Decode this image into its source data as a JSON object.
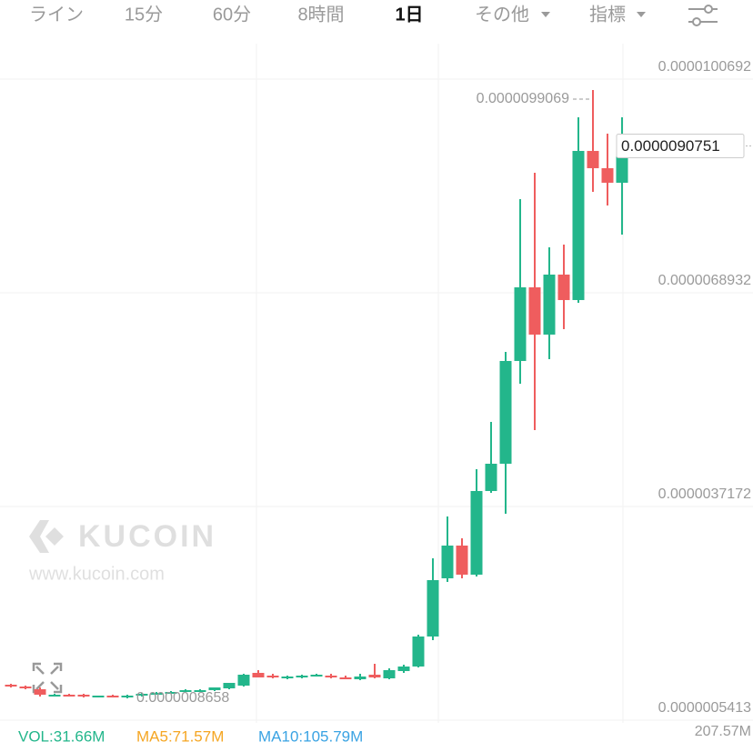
{
  "tabs": [
    "ライン",
    "15分",
    "60分",
    "8時間",
    "1日",
    "その他",
    "指標"
  ],
  "watermark": {
    "brand": "KUCOIN",
    "url": "www.kucoin.com"
  },
  "chart_data": {
    "type": "candlestick",
    "up_color": "#23b68b",
    "down_color": "#ef5d5e",
    "ylim": [
      4.33e-07,
      1.0569e-05
    ],
    "yticks": [
      {
        "value": 1.00692e-05,
        "label": "0.0000100692"
      },
      {
        "value": 6.8932e-06,
        "label": "0.0000068932"
      },
      {
        "value": 3.7172e-06,
        "label": "0.0000037172"
      },
      {
        "value": 5.413e-07,
        "label": "0.0000005413"
      }
    ],
    "grid": true,
    "open": [
      1.0684e-06,
      1.0414e-06,
      1.0008e-06,
      9.062e-07,
      9.197e-07,
      9.197e-07,
      8.927e-07,
      9.062e-07,
      8.927e-07,
      9.062e-07,
      9.332e-07,
      9.468e-07,
      9.738e-07,
      9.873e-07,
      9.873e-07,
      1.0143e-06,
      1.0549e-06,
      1.2441e-06,
      1.2035e-06,
      1.163e-06,
      1.1765e-06,
      1.2035e-06,
      1.2035e-06,
      1.1765e-06,
      1.1495e-06,
      1.2171e-06,
      1.163e-06,
      1.2711e-06,
      1.3387e-06,
      1.7847e-06,
      2.6496e-06,
      3.1362e-06,
      2.7037e-06,
      3.9471e-06,
      4.3525e-06,
      5.8797e-06,
      6.9744e-06,
      6.2717e-06,
      7.1637e-06,
      6.7852e-06,
      9.0017e-06,
      8.7449e-06,
      8.5287e-06
    ],
    "high": [
      1.0819e-06,
      1.0549e-06,
      1.0278e-06,
      9.332e-07,
      9.332e-07,
      9.332e-07,
      9.062e-07,
      9.197e-07,
      9.197e-07,
      9.468e-07,
      9.603e-07,
      9.738e-07,
      1.0008e-06,
      1.0008e-06,
      1.0278e-06,
      1.0954e-06,
      1.2306e-06,
      1.2846e-06,
      1.2306e-06,
      1.2035e-06,
      1.2171e-06,
      1.2306e-06,
      1.2306e-06,
      1.2035e-06,
      1.2306e-06,
      1.3792e-06,
      1.3117e-06,
      1.3657e-06,
      1.8117e-06,
      2.947e-06,
      3.5687e-06,
      3.2443e-06,
      4.2714e-06,
      4.9742e-06,
      6.0149e-06,
      8.2854e-06,
      8.6773e-06,
      7.5691e-06,
      7.6096e-06,
      9.5017e-06,
      9.9069e-06,
      9.2585e-06,
      9.5017e-06
    ],
    "low": [
      1.0278e-06,
      1.0008e-06,
      8.927e-07,
      8.927e-07,
      8.927e-07,
      8.792e-07,
      8.792e-07,
      8.792e-07,
      8.658e-07,
      8.927e-07,
      9.197e-07,
      9.332e-07,
      9.603e-07,
      9.738e-07,
      9.738e-07,
      1.0008e-06,
      1.0414e-06,
      1.1765e-06,
      1.163e-06,
      1.1495e-06,
      1.163e-06,
      1.19e-06,
      1.163e-06,
      1.1495e-06,
      1.136e-06,
      1.163e-06,
      1.1495e-06,
      1.2441e-06,
      1.3252e-06,
      1.7306e-06,
      2.5956e-06,
      2.6496e-06,
      2.6767e-06,
      3.9201e-06,
      3.6092e-06,
      5.5419e-06,
      4.8526e-06,
      5.9068e-06,
      6.3528e-06,
      6.7447e-06,
      8.3935e-06,
      8.1908e-06,
      7.7583e-06
    ],
    "close": [
      1.0414e-06,
      1.0143e-06,
      9.197e-07,
      9.197e-07,
      9.062e-07,
      8.927e-07,
      9.062e-07,
      8.927e-07,
      9.062e-07,
      9.332e-07,
      9.468e-07,
      9.603e-07,
      9.873e-07,
      9.873e-07,
      1.0278e-06,
      1.0954e-06,
      1.2171e-06,
      1.1765e-06,
      1.1765e-06,
      1.19e-06,
      1.2035e-06,
      1.2171e-06,
      1.1765e-06,
      1.163e-06,
      1.19e-06,
      1.1765e-06,
      1.2846e-06,
      1.3387e-06,
      1.7847e-06,
      2.6226e-06,
      3.1362e-06,
      2.7037e-06,
      3.9471e-06,
      4.3525e-06,
      5.8797e-06,
      6.9744e-06,
      6.2717e-06,
      7.1637e-06,
      6.7852e-06,
      9.0017e-06,
      8.7449e-06,
      8.5287e-06,
      9.0751e-06
    ],
    "annotations": {
      "high": "0.0000099069",
      "low": "0.0000008658",
      "last": "0.0000090751"
    },
    "volume": {
      "vol": "VOL:31.66M",
      "ma5": "MA5:71.57M",
      "ma10": "MA10:105.79M",
      "max": "207.57M"
    }
  }
}
